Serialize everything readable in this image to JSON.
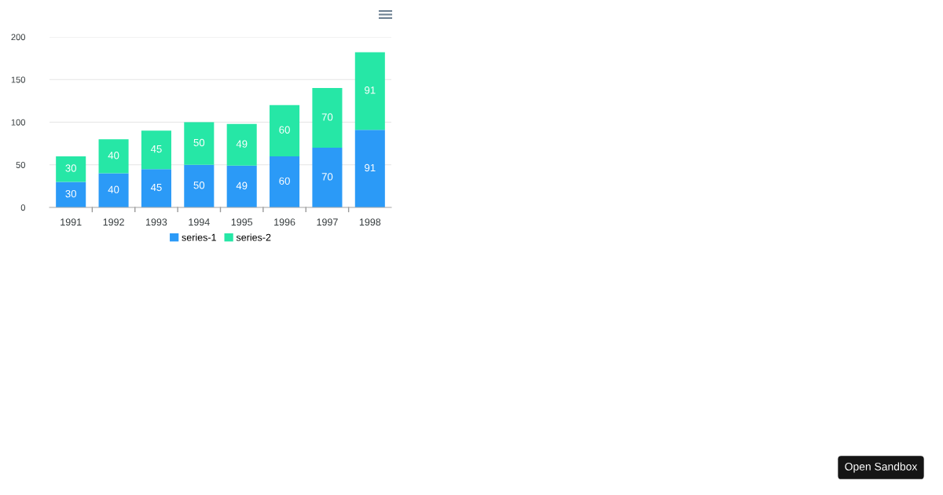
{
  "chart_data": {
    "type": "bar",
    "stacked": true,
    "categories": [
      "1991",
      "1992",
      "1993",
      "1994",
      "1995",
      "1996",
      "1997",
      "1998"
    ],
    "series": [
      {
        "name": "series-1",
        "color": "#2b9af7",
        "values": [
          30,
          40,
          45,
          50,
          49,
          60,
          70,
          91
        ]
      },
      {
        "name": "series-2",
        "color": "#26e7a6",
        "values": [
          30,
          40,
          45,
          50,
          49,
          60,
          70,
          91
        ]
      }
    ],
    "ylim": [
      0,
      200
    ],
    "yticks": [
      0,
      50,
      100,
      150,
      200
    ],
    "grid": "y",
    "legend": "bottom",
    "data_labels": true,
    "annotations": [
      "Open Sandbox"
    ]
  }
}
